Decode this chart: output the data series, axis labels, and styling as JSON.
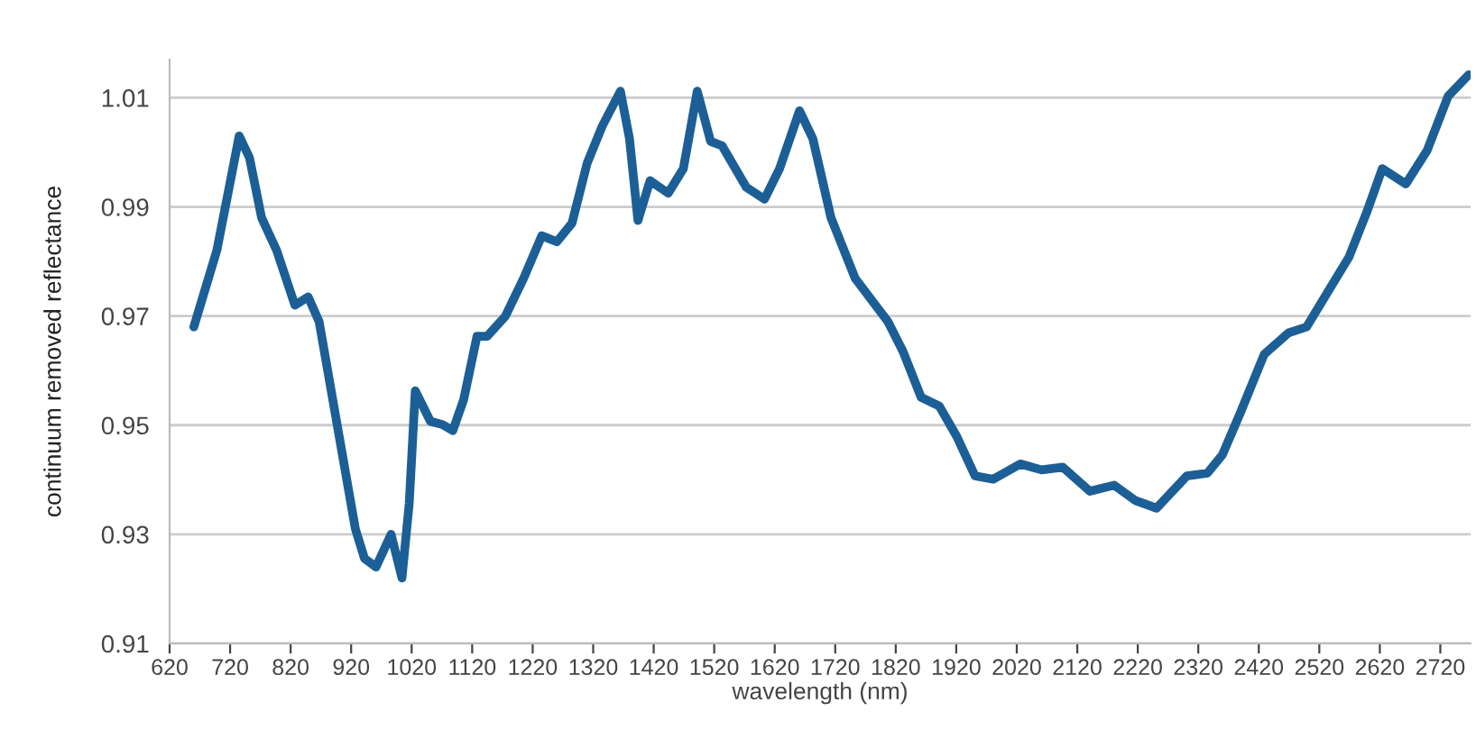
{
  "chart_data": {
    "type": "line",
    "xlabel": "wavelength (nm)",
    "ylabel": "continuum removed reflectance",
    "xlim": [
      620,
      2770
    ],
    "xticks": [
      620,
      720,
      820,
      920,
      1020,
      1120,
      1220,
      1320,
      1420,
      1520,
      1620,
      1720,
      1820,
      1920,
      2020,
      2120,
      2220,
      2320,
      2420,
      2520,
      2620,
      2720
    ],
    "ylim": [
      0.91,
      1.017
    ],
    "yticks": [
      0.91,
      0.93,
      0.95,
      0.97,
      0.99,
      1.01
    ],
    "grid": "y",
    "marker": "none",
    "line_style": "solid",
    "series": [
      {
        "color": "#1c5f96",
        "x": [
          660,
          698,
          735,
          752,
          772,
          797,
          827,
          849,
          867,
          897,
          927,
          942,
          961,
          986,
          1004,
          1016,
          1026,
          1051,
          1071,
          1088,
          1106,
          1128,
          1145,
          1175,
          1205,
          1235,
          1260,
          1285,
          1310,
          1335,
          1365,
          1380,
          1394,
          1414,
          1444,
          1469,
          1492,
          1514,
          1533,
          1573,
          1603,
          1628,
          1661,
          1683,
          1713,
          1753,
          1807,
          1832,
          1862,
          1892,
          1921,
          1951,
          1981,
          2026,
          2061,
          2096,
          2141,
          2181,
          2216,
          2251,
          2301,
          2335,
          2360,
          2390,
          2429,
          2469,
          2499,
          2529,
          2569,
          2599,
          2624,
          2663,
          2698,
          2733,
          2767
        ],
        "values": [
          0.968,
          0.982,
          1.003,
          0.999,
          0.988,
          0.982,
          0.972,
          0.9735,
          0.969,
          0.95,
          0.931,
          0.9256,
          0.924,
          0.93,
          0.922,
          0.9357,
          0.9563,
          0.9507,
          0.9501,
          0.949,
          0.9547,
          0.9663,
          0.9663,
          0.97,
          0.9769,
          0.9847,
          0.9836,
          0.987,
          0.998,
          1.0048,
          1.0112,
          1.0025,
          0.9875,
          0.9948,
          0.9925,
          0.997,
          1.0112,
          1.002,
          1.0012,
          0.9936,
          0.9914,
          0.997,
          1.0076,
          1.0025,
          0.988,
          0.9769,
          0.969,
          0.9635,
          0.9551,
          0.9535,
          0.9479,
          0.9407,
          0.9401,
          0.9429,
          0.9418,
          0.9423,
          0.9379,
          0.939,
          0.9362,
          0.9348,
          0.9407,
          0.9412,
          0.9446,
          0.9524,
          0.963,
          0.9669,
          0.968,
          0.9735,
          0.9808,
          0.9892,
          0.997,
          0.9942,
          1.0003,
          1.0103,
          1.0142
        ]
      }
    ]
  }
}
